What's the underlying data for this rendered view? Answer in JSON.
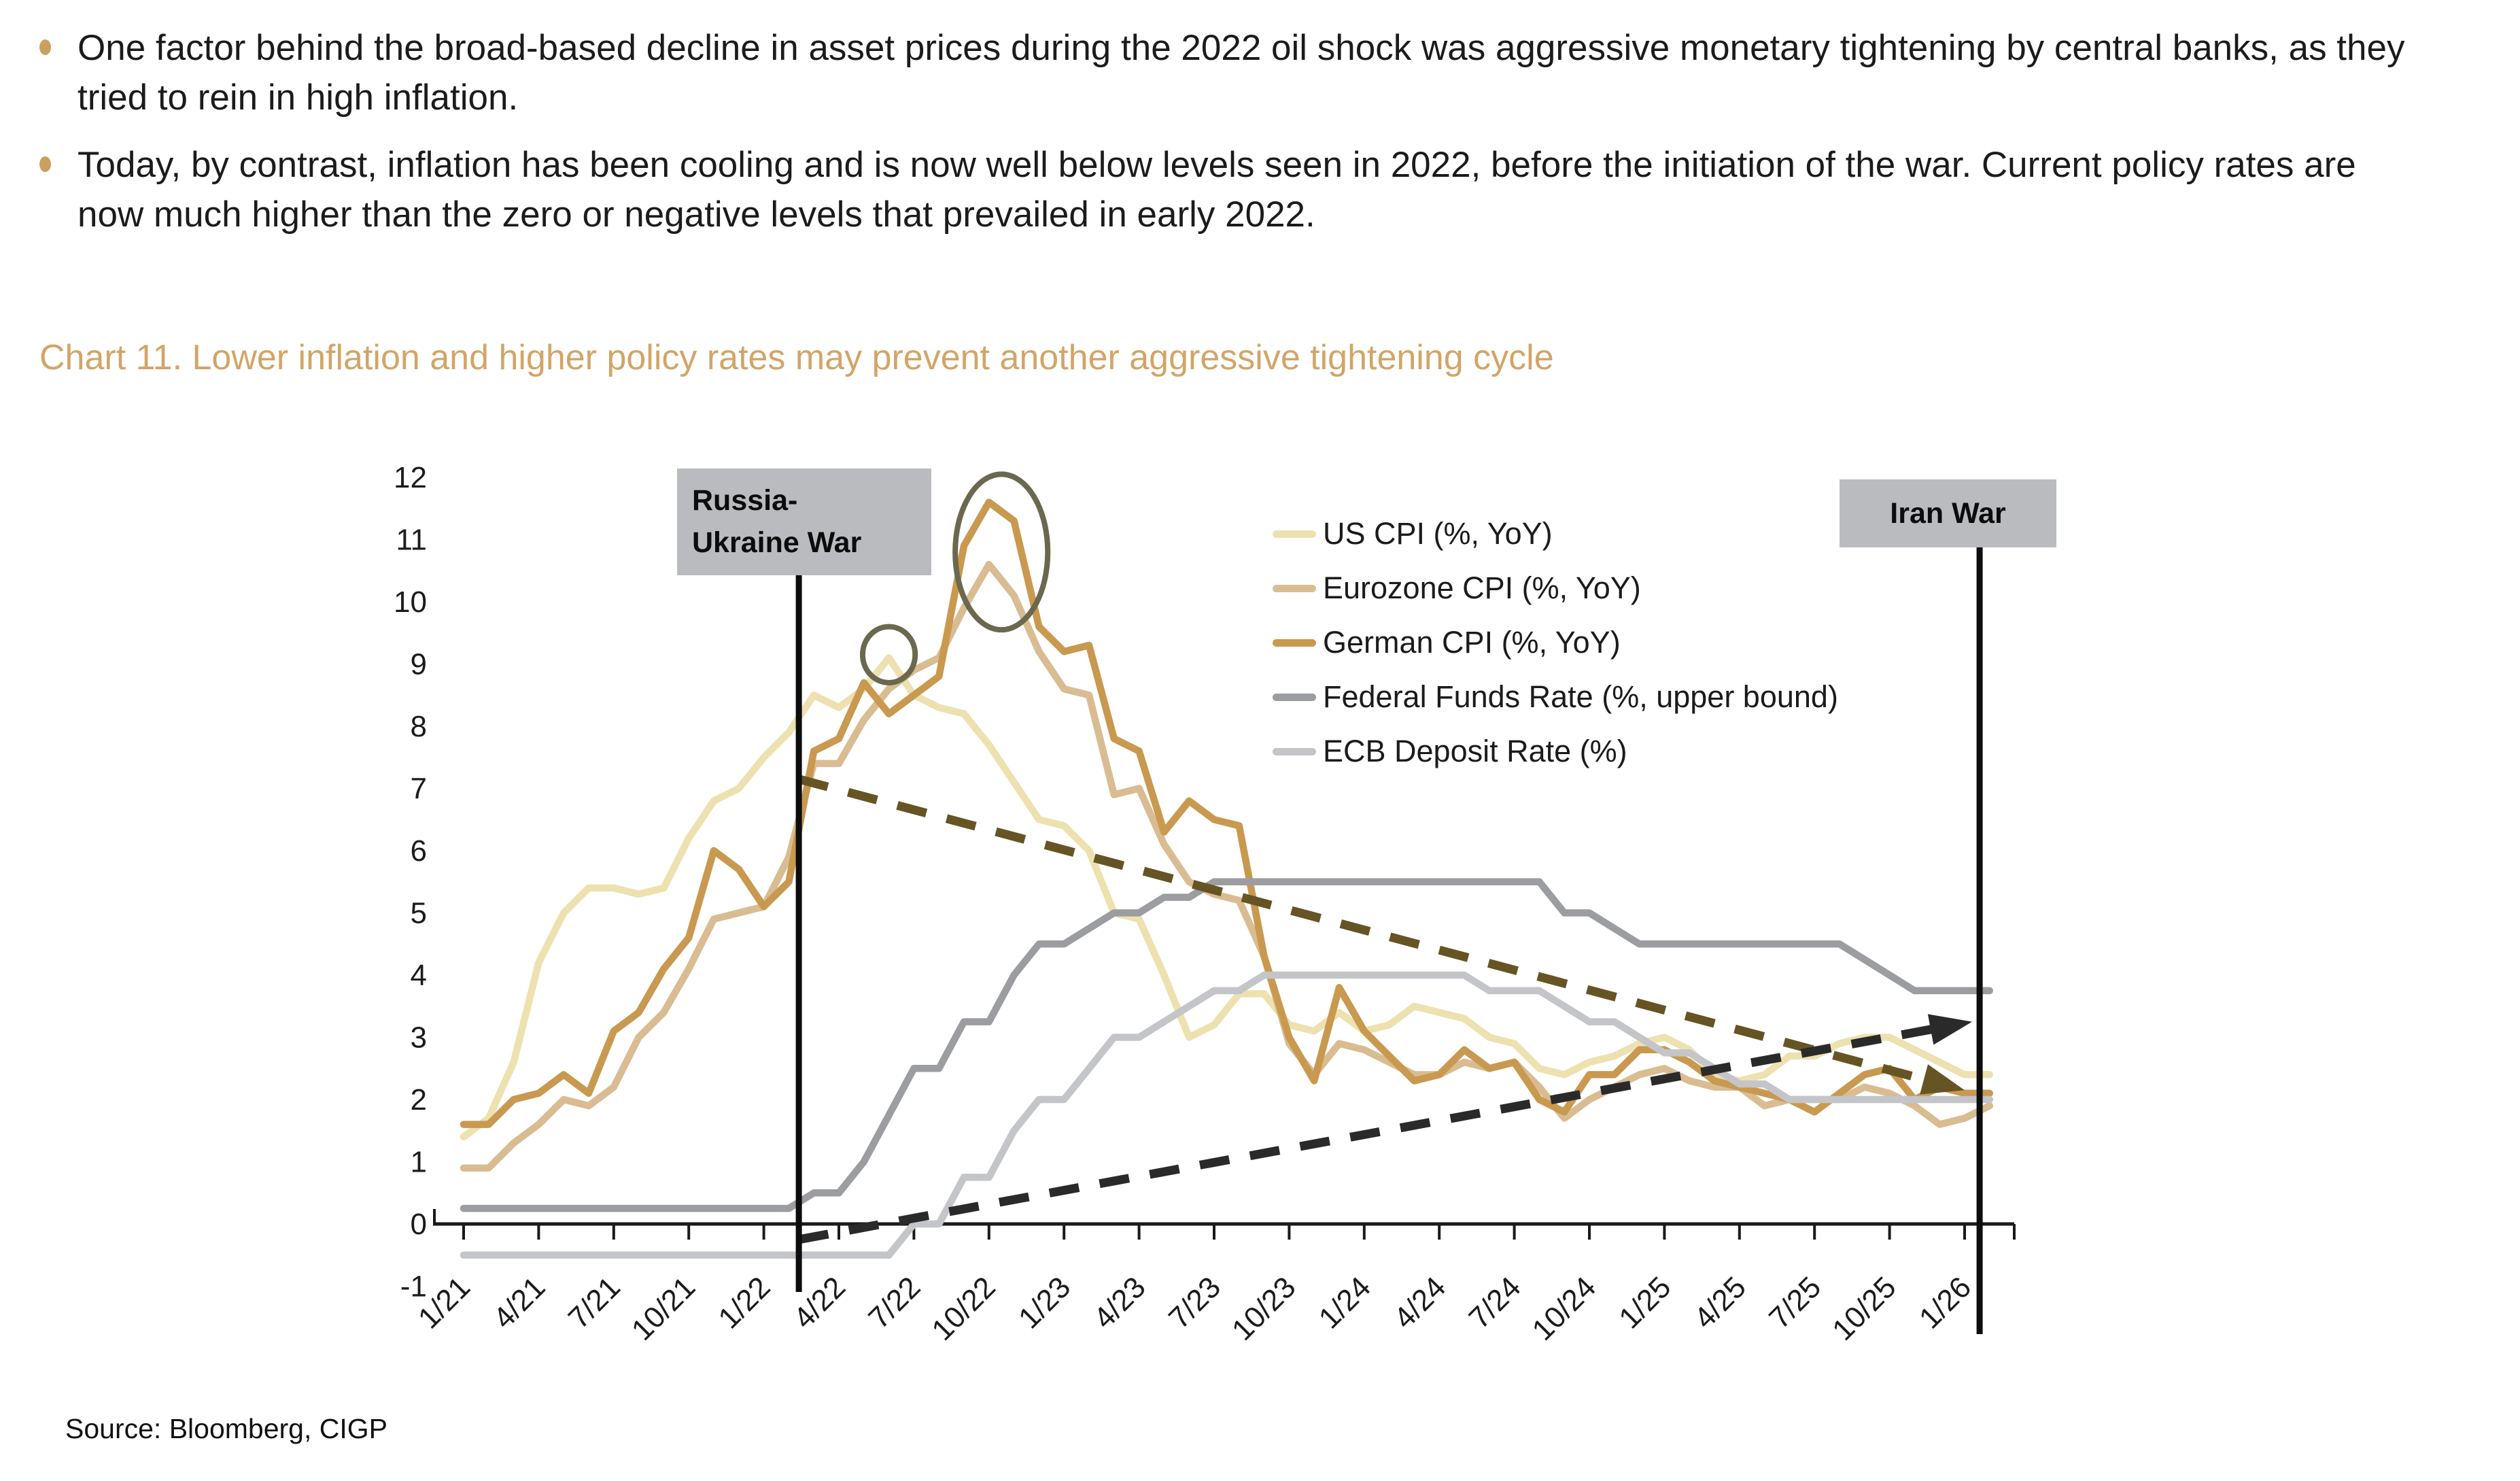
{
  "page": {
    "bullets": [
      "One factor behind the broad-based decline in asset prices during the 2022 oil shock was aggressive monetary tightening by central banks, as they tried to rein in high inflation.",
      "Today, by contrast, inflation has been cooling and is now well below levels seen in 2022, before the initiation of the war. Current policy rates are now much higher than the zero or negative levels that prevailed in early 2022."
    ],
    "chart_title": "Chart 11. Lower inflation and higher policy rates may prevent another aggressive tightening cycle",
    "source": "Source: Bloomberg, CIGP"
  },
  "annotations": {
    "russia_line1": "Russia-",
    "russia_line2": "Ukraine War",
    "iran": "Iran War"
  },
  "colors": {
    "title": "#d2a567",
    "bullet_dot": "#c9a05e",
    "event_box_bg": "#b9bbbf",
    "axis": "#1a1a1a",
    "event_line": "#0d0d0d",
    "ellipse": "#6a684e"
  },
  "chart_data": {
    "type": "line",
    "title": "Chart 11. Lower inflation and higher policy rates may prevent another aggressive tightening cycle",
    "xlabel": "",
    "ylabel": "",
    "ylim": [
      -1,
      12
    ],
    "ytick_step": 1,
    "grid": false,
    "legend_position": "inside-top-center",
    "x_start_month": "2021-01",
    "x_end_month": "2026-02",
    "x_tick_labels": [
      "1/21",
      "4/21",
      "7/21",
      "10/21",
      "1/22",
      "4/22",
      "7/22",
      "10/22",
      "1/23",
      "4/23",
      "7/23",
      "10/23",
      "1/24",
      "4/24",
      "7/24",
      "10/24",
      "1/25",
      "4/25",
      "7/25",
      "10/25",
      "1/26"
    ],
    "series": [
      {
        "name": "US CPI (%, YoY)",
        "color": "#ede1b0",
        "values": [
          1.4,
          1.7,
          2.6,
          4.2,
          5.0,
          5.4,
          5.4,
          5.3,
          5.4,
          6.2,
          6.8,
          7.0,
          7.5,
          7.9,
          8.5,
          8.3,
          8.6,
          9.1,
          8.5,
          8.3,
          8.2,
          7.7,
          7.1,
          6.5,
          6.4,
          6.0,
          5.0,
          4.9,
          4.0,
          3.0,
          3.2,
          3.7,
          3.7,
          3.2,
          3.1,
          3.4,
          3.1,
          3.2,
          3.5,
          3.4,
          3.3,
          3.0,
          2.9,
          2.5,
          2.4,
          2.6,
          2.7,
          2.9,
          3.0,
          2.8,
          2.4,
          2.3,
          2.4,
          2.7,
          2.7,
          2.9,
          3.0,
          3.0,
          2.8,
          2.6,
          2.4,
          2.4
        ]
      },
      {
        "name": "Eurozone CPI (%, YoY)",
        "color": "#d9bc92",
        "values": [
          0.9,
          0.9,
          1.3,
          1.6,
          2.0,
          1.9,
          2.2,
          3.0,
          3.4,
          4.1,
          4.9,
          5.0,
          5.1,
          5.9,
          7.4,
          7.4,
          8.1,
          8.6,
          8.9,
          9.1,
          9.9,
          10.6,
          10.1,
          9.2,
          8.6,
          8.5,
          6.9,
          7.0,
          6.1,
          5.5,
          5.3,
          5.2,
          4.3,
          2.9,
          2.4,
          2.9,
          2.8,
          2.6,
          2.4,
          2.4,
          2.6,
          2.5,
          2.6,
          2.2,
          1.7,
          2.0,
          2.2,
          2.4,
          2.5,
          2.3,
          2.2,
          2.2,
          1.9,
          2.0,
          2.0,
          2.0,
          2.2,
          2.1,
          1.9,
          1.6,
          1.7,
          1.9
        ]
      },
      {
        "name": "German CPI (%, YoY)",
        "color": "#c8994f",
        "values": [
          1.6,
          1.6,
          2.0,
          2.1,
          2.4,
          2.1,
          3.1,
          3.4,
          4.1,
          4.6,
          6.0,
          5.7,
          5.1,
          5.5,
          7.6,
          7.8,
          8.7,
          8.2,
          8.5,
          8.8,
          10.9,
          11.6,
          11.3,
          9.6,
          9.2,
          9.3,
          7.8,
          7.6,
          6.3,
          6.8,
          6.5,
          6.4,
          4.3,
          3.0,
          2.3,
          3.8,
          3.1,
          2.7,
          2.3,
          2.4,
          2.8,
          2.5,
          2.6,
          2.0,
          1.8,
          2.4,
          2.4,
          2.8,
          2.8,
          2.6,
          2.3,
          2.2,
          2.1,
          2.0,
          1.8,
          2.1,
          2.4,
          2.5,
          2.0,
          2.2,
          2.1,
          2.1
        ]
      },
      {
        "name": "Federal Funds Rate (%, upper bound)",
        "color": "#9b9da0",
        "values": [
          0.25,
          0.25,
          0.25,
          0.25,
          0.25,
          0.25,
          0.25,
          0.25,
          0.25,
          0.25,
          0.25,
          0.25,
          0.25,
          0.25,
          0.5,
          0.5,
          1.0,
          1.75,
          2.5,
          2.5,
          3.25,
          3.25,
          4.0,
          4.5,
          4.5,
          4.75,
          5.0,
          5.0,
          5.25,
          5.25,
          5.5,
          5.5,
          5.5,
          5.5,
          5.5,
          5.5,
          5.5,
          5.5,
          5.5,
          5.5,
          5.5,
          5.5,
          5.5,
          5.5,
          5.0,
          5.0,
          4.75,
          4.5,
          4.5,
          4.5,
          4.5,
          4.5,
          4.5,
          4.5,
          4.5,
          4.5,
          4.25,
          4.0,
          3.75,
          3.75,
          3.75,
          3.75
        ]
      },
      {
        "name": "ECB Deposit Rate (%)",
        "color": "#c3c5c9",
        "values": [
          -0.5,
          -0.5,
          -0.5,
          -0.5,
          -0.5,
          -0.5,
          -0.5,
          -0.5,
          -0.5,
          -0.5,
          -0.5,
          -0.5,
          -0.5,
          -0.5,
          -0.5,
          -0.5,
          -0.5,
          -0.5,
          0.0,
          0.0,
          0.75,
          0.75,
          1.5,
          2.0,
          2.0,
          2.5,
          3.0,
          3.0,
          3.25,
          3.5,
          3.75,
          3.75,
          4.0,
          4.0,
          4.0,
          4.0,
          4.0,
          4.0,
          4.0,
          4.0,
          4.0,
          3.75,
          3.75,
          3.75,
          3.5,
          3.25,
          3.25,
          3.0,
          2.75,
          2.75,
          2.5,
          2.25,
          2.25,
          2.0,
          2.0,
          2.0,
          2.0,
          2.0,
          2.0,
          2.0,
          2.0,
          2.0
        ]
      }
    ],
    "events": [
      {
        "name": "russia-ukraine-war-line",
        "label": "Russia-Ukraine War",
        "month_index": 13.4
      },
      {
        "name": "iran-war-line",
        "label": "Iran War",
        "month_index": 60.6
      }
    ],
    "trend_arrows": [
      {
        "name": "inflation-downtrend-arrow",
        "color": "#665424",
        "from": {
          "month_index": 13.4,
          "value": 7.15
        },
        "to": {
          "month_index": 60.0,
          "value": 2.15
        }
      },
      {
        "name": "policy-rate-uptrend-arrow",
        "color": "#2a2a2a",
        "from": {
          "month_index": 13.4,
          "value": -0.25
        },
        "to": {
          "month_index": 60.3,
          "value": 3.25
        }
      }
    ],
    "highlight_ellipses": [
      {
        "name": "us-cpi-peak-circle",
        "month_index": 17.0,
        "value": 9.15,
        "rx_months": 1.05,
        "ry_units": 0.45
      },
      {
        "name": "german-eurozone-cpi-peak-ellipse",
        "month_index": 21.5,
        "value": 10.8,
        "rx_months": 1.85,
        "ry_units": 1.25
      }
    ]
  }
}
